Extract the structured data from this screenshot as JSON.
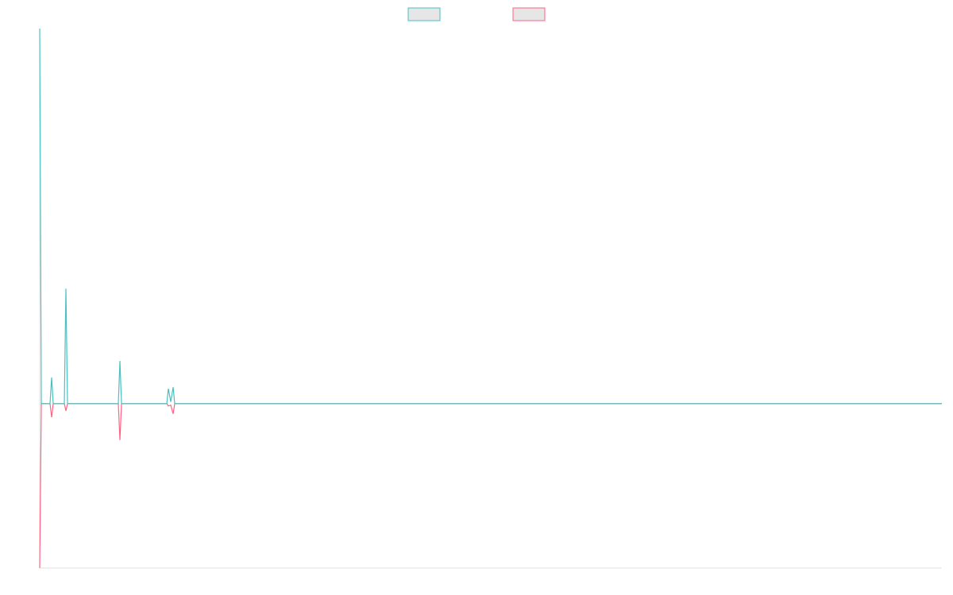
{
  "chart_data": {
    "type": "line",
    "x": [
      0,
      2,
      13,
      15,
      17,
      31,
      33,
      35,
      99,
      101,
      103,
      160,
      162,
      165,
      168,
      170,
      1136
    ],
    "series": [
      {
        "color": "#4bc0c0",
        "values": [
          100,
          0,
          0,
          7,
          0,
          0,
          30.7,
          0,
          0,
          11.4,
          0,
          0,
          4,
          0.5,
          4.4,
          0,
          0
        ]
      },
      {
        "color": "#ff6384",
        "values": [
          -43.8,
          0,
          0,
          -3.6,
          0,
          0,
          -1.9,
          0,
          0,
          -9.7,
          0,
          0,
          -0.6,
          -0.4,
          -2.7,
          0,
          0
        ]
      }
    ],
    "xlim": [
      0,
      1136
    ],
    "ylim": [
      -43.8,
      100
    ],
    "legend": "top",
    "grid": false
  }
}
